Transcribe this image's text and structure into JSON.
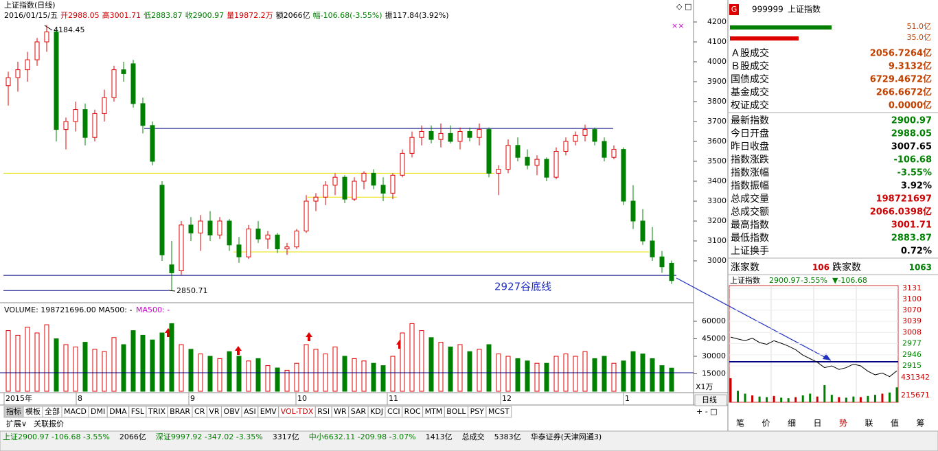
{
  "kline": {
    "title": "上证指数(日线)",
    "info": [
      {
        "text": "2016/01/15/五",
        "color": "#000"
      },
      {
        "text": "开2988.05",
        "color": "#c00"
      },
      {
        "text": "高3001.71",
        "color": "#c00"
      },
      {
        "text": "低2883.87",
        "color": "#008000"
      },
      {
        "text": "收2900.97",
        "color": "#008000"
      },
      {
        "text": "量19872.2万",
        "color": "#c00"
      },
      {
        "text": "额2066亿",
        "color": "#000"
      },
      {
        "text": "幅-106.68(-3.55%)",
        "color": "#008000"
      },
      {
        "text": "振117.84(3.92%)",
        "color": "#000"
      }
    ],
    "high_label": "4184.45",
    "low_label": "2850.71",
    "line_label": "2927谷底线",
    "yticks": [
      4200,
      4100,
      4000,
      3900,
      3800,
      3700,
      3600,
      3500,
      3400,
      3300,
      3200,
      3100,
      3000
    ],
    "levels": [
      {
        "value": 3665,
        "color": "#000080"
      },
      {
        "value": 3440,
        "color": "#e8e000"
      },
      {
        "value": 3320,
        "color": "#e8e000"
      },
      {
        "value": 3045,
        "color": "#e8e000"
      },
      {
        "value": 2927,
        "color": "#000080"
      },
      {
        "value": 2850.71,
        "color": "#000080"
      }
    ],
    "candles": [
      [
        3880,
        3950,
        3780,
        3920
      ],
      [
        3920,
        4000,
        3850,
        3960
      ],
      [
        3960,
        4050,
        3900,
        4010
      ],
      [
        4010,
        4120,
        3980,
        4100
      ],
      [
        4100,
        4184.45,
        4050,
        4150
      ],
      [
        4150,
        4160,
        3600,
        3660
      ],
      [
        3660,
        3720,
        3560,
        3700
      ],
      [
        3700,
        3800,
        3650,
        3760
      ],
      [
        3760,
        3790,
        3580,
        3620
      ],
      [
        3620,
        3760,
        3600,
        3740
      ],
      [
        3740,
        3860,
        3700,
        3820
      ],
      [
        3820,
        3980,
        3800,
        3960
      ],
      [
        3960,
        4000,
        3900,
        3940
      ],
      [
        3990,
        4010,
        3770,
        3790
      ],
      [
        3790,
        3820,
        3640,
        3680
      ],
      [
        3680,
        3700,
        3480,
        3500
      ],
      [
        3380,
        3400,
        3000,
        3030
      ],
      [
        2980,
        3100,
        2850.71,
        2940
      ],
      [
        2950,
        3200,
        2930,
        3180
      ],
      [
        3180,
        3220,
        3100,
        3140
      ],
      [
        3140,
        3230,
        3050,
        3200
      ],
      [
        3200,
        3250,
        3100,
        3130
      ],
      [
        3130,
        3220,
        3110,
        3200
      ],
      [
        3200,
        3210,
        3050,
        3080
      ],
      [
        3080,
        3120,
        2990,
        3020
      ],
      [
        3020,
        3180,
        3010,
        3160
      ],
      [
        3160,
        3200,
        3090,
        3110
      ],
      [
        3110,
        3150,
        3060,
        3130
      ],
      [
        3130,
        3140,
        3040,
        3060
      ],
      [
        3060,
        3090,
        3030,
        3070
      ],
      [
        3070,
        3160,
        3060,
        3150
      ],
      [
        3150,
        3330,
        3140,
        3300
      ],
      [
        3300,
        3340,
        3250,
        3320
      ],
      [
        3320,
        3400,
        3280,
        3380
      ],
      [
        3380,
        3440,
        3330,
        3420
      ],
      [
        3420,
        3430,
        3290,
        3310
      ],
      [
        3310,
        3420,
        3300,
        3400
      ],
      [
        3400,
        3450,
        3360,
        3440
      ],
      [
        3440,
        3460,
        3360,
        3380
      ],
      [
        3380,
        3420,
        3300,
        3340
      ],
      [
        3340,
        3440,
        3310,
        3430
      ],
      [
        3430,
        3560,
        3420,
        3540
      ],
      [
        3540,
        3650,
        3520,
        3620
      ],
      [
        3620,
        3680,
        3580,
        3650
      ],
      [
        3650,
        3680,
        3590,
        3610
      ],
      [
        3610,
        3690,
        3570,
        3640
      ],
      [
        3640,
        3680,
        3590,
        3600
      ],
      [
        3600,
        3670,
        3560,
        3650
      ],
      [
        3650,
        3670,
        3600,
        3620
      ],
      [
        3620,
        3690,
        3580,
        3660
      ],
      [
        3660,
        3670,
        3420,
        3440
      ],
      [
        3440,
        3480,
        3330,
        3460
      ],
      [
        3460,
        3610,
        3440,
        3580
      ],
      [
        3580,
        3620,
        3500,
        3520
      ],
      [
        3520,
        3560,
        3460,
        3480
      ],
      [
        3480,
        3530,
        3430,
        3510
      ],
      [
        3510,
        3520,
        3400,
        3420
      ],
      [
        3420,
        3570,
        3410,
        3550
      ],
      [
        3550,
        3620,
        3530,
        3600
      ],
      [
        3600,
        3650,
        3580,
        3630
      ],
      [
        3630,
        3684,
        3600,
        3660
      ],
      [
        3660,
        3670,
        3580,
        3600
      ],
      [
        3600,
        3620,
        3500,
        3520
      ],
      [
        3520,
        3580,
        3510,
        3560
      ],
      [
        3560,
        3570,
        3280,
        3300
      ],
      [
        3300,
        3380,
        3160,
        3200
      ],
      [
        3200,
        3260,
        3080,
        3100
      ],
      [
        3100,
        3170,
        3000,
        3020
      ],
      [
        3020,
        3050,
        2940,
        2970
      ],
      [
        2988.05,
        3001.71,
        2883.87,
        2900.97
      ]
    ],
    "volume_label": "VOLUME: 198721696.00 MA500: -",
    "volume_ma_label": "MA500: -",
    "volume_ticks": [
      60000,
      45000,
      30000,
      15000
    ],
    "volumes": [
      52000,
      48000,
      55000,
      50000,
      57000,
      45000,
      40000,
      38000,
      42000,
      36000,
      34000,
      46000,
      40000,
      52000,
      48000,
      44000,
      50000,
      58000,
      40000,
      36000,
      32000,
      30000,
      28000,
      34000,
      30000,
      26000,
      28000,
      22000,
      20000,
      18000,
      24000,
      40000,
      36000,
      32000,
      38000,
      30000,
      28000,
      26000,
      24000,
      22000,
      30000,
      50000,
      58000,
      52000,
      46000,
      42000,
      38000,
      40000,
      34000,
      36000,
      40000,
      32000,
      30000,
      28000,
      26000,
      24000,
      24000,
      30000,
      32000,
      30000,
      34000,
      28000,
      30000,
      24000,
      26000,
      34000,
      32000,
      28000,
      22000,
      19872
    ],
    "dates": [
      "2015年",
      "8",
      "9",
      "10",
      "11",
      "12",
      "1"
    ]
  },
  "tabs": [
    "指标",
    "模板",
    "全部",
    "MACD",
    "DMI",
    "DMA",
    "FSL",
    "TRIX",
    "BRAR",
    "CR",
    "VR",
    "OBV",
    "ASI",
    "EMV",
    "VOL-TDX",
    "RSI",
    "WR",
    "SAR",
    "KDJ",
    "CCI",
    "ROC",
    "MTM",
    "BOLL",
    "PSY",
    "MCST"
  ],
  "tabs2": [
    "扩展∨",
    "关联报价"
  ],
  "period_button": "日线",
  "zoom_label": "X1万",
  "panel": {
    "code": "999999",
    "name": "上证指数",
    "bar1": "51.0亿",
    "bar2": "35.0亿",
    "rows": [
      {
        "label": "Ａ股成交",
        "value": "2056.7264亿",
        "color": "#c04000"
      },
      {
        "label": "Ｂ股成交",
        "value": "9.3132亿",
        "color": "#c04000"
      },
      {
        "label": "国债成交",
        "value": "6729.4672亿",
        "color": "#c04000"
      },
      {
        "label": "基金成交",
        "value": "266.6672亿",
        "color": "#c04000"
      },
      {
        "label": "权证成交",
        "value": "0.0000亿",
        "color": "#c04000"
      },
      {
        "label": "最新指数",
        "value": "2900.97",
        "color": "#008000"
      },
      {
        "label": "今日开盘",
        "value": "2988.05",
        "color": "#008000"
      },
      {
        "label": "昨日收盘",
        "value": "3007.65",
        "color": "#000"
      },
      {
        "label": "指数涨跌",
        "value": "-106.68",
        "color": "#008000"
      },
      {
        "label": "指数涨幅",
        "value": "-3.55%",
        "color": "#008000"
      },
      {
        "label": "指数振幅",
        "value": "3.92%",
        "color": "#000"
      },
      {
        "label": "总成交量",
        "value": "198721697",
        "color": "#c00"
      },
      {
        "label": "总成交额",
        "value": "2066.0398亿",
        "color": "#c00"
      },
      {
        "label": "最高指数",
        "value": "3001.71",
        "color": "#c00"
      },
      {
        "label": "最低指数",
        "value": "2883.87",
        "color": "#008000"
      },
      {
        "label": "上证换手",
        "value": "0.72%",
        "color": "#000"
      }
    ],
    "up_label": "涨家数",
    "up": "106",
    "down_label": "跌家数",
    "down": "1063",
    "buttons": [
      "笔",
      "价",
      "细",
      "日",
      "势",
      "联",
      "值",
      "筹"
    ]
  },
  "intraday": {
    "title": "上证指数",
    "price": "2900.97",
    "pct": "-3.55%",
    "chg": "▼-106.68",
    "yticks": [
      3131,
      3100,
      3070,
      3039,
      3008,
      2977,
      2946,
      2915
    ],
    "vol_ticks": [
      431342,
      215671
    ],
    "prices": [
      2995,
      2990,
      2985,
      2992,
      2980,
      2975,
      2985,
      2978,
      2970,
      2960,
      2945,
      2935,
      2925,
      2910,
      2915,
      2905,
      2910,
      2920,
      2915,
      2900,
      2890,
      2895,
      2885,
      2900.97
    ],
    "volumes": [
      420000,
      200000,
      150000,
      120000,
      100000,
      90000,
      110000,
      80000,
      70000,
      90000,
      120000,
      150000,
      100000,
      300000,
      130000,
      90000,
      80000,
      100000,
      90000,
      110000,
      130000,
      150000,
      170000,
      260000
    ]
  },
  "status": [
    {
      "text": "上证2900.97 -106.68 -3.55%",
      "color": "#008000"
    },
    {
      "text": "2066亿",
      "color": "#000"
    },
    {
      "text": "深证9997.92 -347.02 -3.35%",
      "color": "#008000"
    },
    {
      "text": "3317亿",
      "color": "#000"
    },
    {
      "text": "中小6632.11 -209.98 -3.07%",
      "color": "#008000"
    },
    {
      "text": "1413亿",
      "color": "#000"
    },
    {
      "text": "总成交",
      "color": "#000"
    },
    {
      "text": "5383亿",
      "color": "#000"
    },
    {
      "text": "华泰证券(天津网通3)",
      "color": "#000"
    }
  ]
}
